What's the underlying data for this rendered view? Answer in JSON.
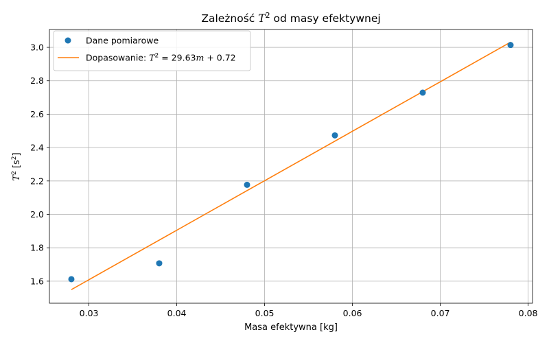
{
  "chart_data": {
    "type": "scatter",
    "title": {
      "before": "Zależność ",
      "var": "T",
      "sup": "2",
      "after": " od masy efektywnej"
    },
    "xlabel": "Masa efektywna [kg]",
    "ylabel": {
      "var": "T",
      "sup": "2",
      "unit_open": " [s",
      "unit_sup": "2",
      "unit_close": "]"
    },
    "xlim": [
      0.0255,
      0.0805
    ],
    "ylim": [
      1.468,
      3.107
    ],
    "xticks": [
      0.03,
      0.04,
      0.05,
      0.06,
      0.07,
      0.08
    ],
    "xtick_labels": [
      "0.03",
      "0.04",
      "0.05",
      "0.06",
      "0.07",
      "0.08"
    ],
    "yticks": [
      1.6,
      1.8,
      2.0,
      2.2,
      2.4,
      2.6,
      2.8,
      3.0
    ],
    "ytick_labels": [
      "1.6",
      "1.8",
      "2.0",
      "2.2",
      "2.4",
      "2.6",
      "2.8",
      "3.0"
    ],
    "grid": true,
    "legend_position": "top-left",
    "series": [
      {
        "name": "Dane pomiarowe",
        "kind": "scatter",
        "color": "#1f77b4",
        "x": [
          0.028,
          0.038,
          0.048,
          0.058,
          0.068,
          0.078
        ],
        "y": [
          1.612,
          1.707,
          2.177,
          2.473,
          2.729,
          3.014
        ]
      },
      {
        "name": "Dopasowanie",
        "kind": "line",
        "color": "#ff7f0e",
        "x": [
          0.028,
          0.078
        ],
        "y": [
          1.5496,
          3.0311
        ]
      }
    ],
    "legend_fit_label": {
      "prefix": "Dopasowanie: ",
      "var": "T",
      "sup": "2",
      "eq1": " = 29.63",
      "m": "m",
      "eq2": " + 0.72"
    }
  }
}
